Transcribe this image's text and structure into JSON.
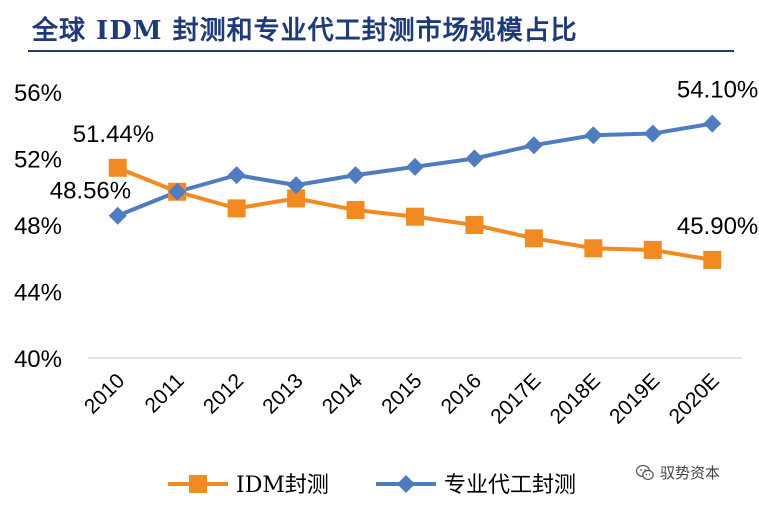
{
  "chart_data": {
    "type": "line",
    "title": "全球 IDM 封测和专业代工封测市场规模占比",
    "categories": [
      "2010",
      "2011",
      "2012",
      "2013",
      "2014",
      "2015",
      "2016",
      "2017E",
      "2018E",
      "2019E",
      "2020E"
    ],
    "series": [
      {
        "name": "IDM封测",
        "color": "#f28a22",
        "marker": "square",
        "values": [
          51.44,
          50.0,
          49.0,
          49.6,
          48.9,
          48.5,
          48.0,
          47.2,
          46.6,
          46.5,
          45.9
        ]
      },
      {
        "name": "专业代工封测",
        "color": "#4f7cc0",
        "marker": "diamond",
        "values": [
          48.56,
          50.0,
          51.0,
          50.4,
          51.0,
          51.5,
          52.0,
          52.8,
          53.4,
          53.5,
          54.1
        ]
      }
    ],
    "yticks": [
      "40%",
      "44%",
      "48%",
      "52%",
      "56%"
    ],
    "ytick_values": [
      40,
      44,
      48,
      52,
      56
    ],
    "ylim": [
      40,
      56
    ],
    "data_labels": [
      {
        "series": 0,
        "index": 0,
        "text": "51.44%"
      },
      {
        "series": 1,
        "index": 0,
        "text": "48.56%"
      },
      {
        "series": 1,
        "index": 10,
        "text": "54.10%"
      },
      {
        "series": 0,
        "index": 10,
        "text": "45.90%"
      }
    ],
    "legend_position": "bottom",
    "grid": false
  },
  "watermark": {
    "text": "驭势资本",
    "icon": "wechat-icon"
  }
}
